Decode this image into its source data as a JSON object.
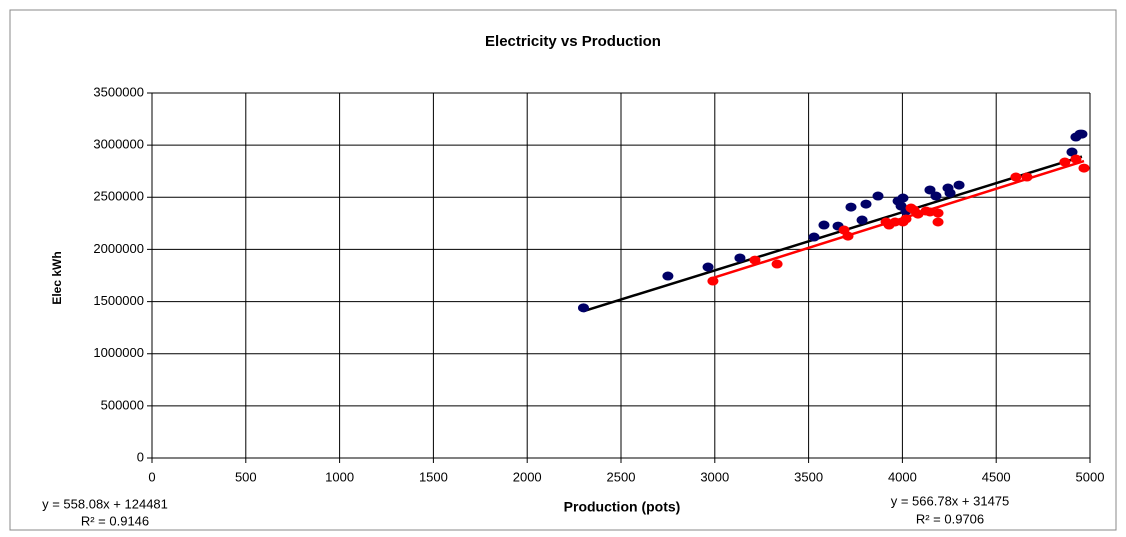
{
  "chart_data": {
    "type": "scatter",
    "title": "Electricity vs Production",
    "x_label": "Production (pots)",
    "y_label": "Elec kWh",
    "xlim": [
      0,
      5000
    ],
    "xticks": [
      0,
      500,
      1000,
      1500,
      2000,
      2500,
      3000,
      3500,
      4000,
      4500,
      5000
    ],
    "ylim": [
      0,
      3500000
    ],
    "yticks": [
      0,
      500000,
      1000000,
      1500000,
      2000000,
      2500000,
      3000000,
      3500000
    ],
    "grid": true,
    "series": [
      {
        "color": "#000066",
        "trend_color": "#000000",
        "x": [
          2300,
          2750,
          2964,
          3134,
          3529,
          3582,
          3657,
          3726,
          3785,
          3806,
          3870,
          3977,
          3993,
          4003,
          4019,
          4147,
          4179,
          4243,
          4254,
          4302,
          4904,
          4925,
          4947,
          4957
        ],
        "values": [
          1440000,
          1745000,
          1831000,
          1918000,
          2119000,
          2234000,
          2224000,
          2406000,
          2282000,
          2435000,
          2512000,
          2464000,
          2416000,
          2493000,
          2368000,
          2570000,
          2512000,
          2589000,
          2541000,
          2617000,
          2934000,
          3078000,
          3106000,
          3106000
        ],
        "trendline": {
          "slope": 558.08,
          "intercept": 124481,
          "equation": "y = 558.08x + 124481",
          "r2": "R² = 0.9146"
        }
      },
      {
        "color": "#ff0000",
        "trend_color": "#ff0000",
        "x": [
          2990,
          3214,
          3332,
          3689,
          3710,
          3913,
          3929,
          3961,
          4003,
          4019,
          4046,
          4062,
          4083,
          4126,
          4147,
          4190,
          4190,
          4605,
          4664,
          4866,
          4925,
          4968
        ],
        "values": [
          1697000,
          1898000,
          1860000,
          2186000,
          2128000,
          2263000,
          2234000,
          2263000,
          2263000,
          2292000,
          2397000,
          2378000,
          2339000,
          2368000,
          2359000,
          2349000,
          2263000,
          2694000,
          2694000,
          2838000,
          2867000,
          2780000
        ],
        "trendline": {
          "slope": 566.78,
          "intercept": 31475,
          "equation": "y = 566.78x + 31475",
          "r2": "R² = 0.9706"
        }
      }
    ]
  }
}
